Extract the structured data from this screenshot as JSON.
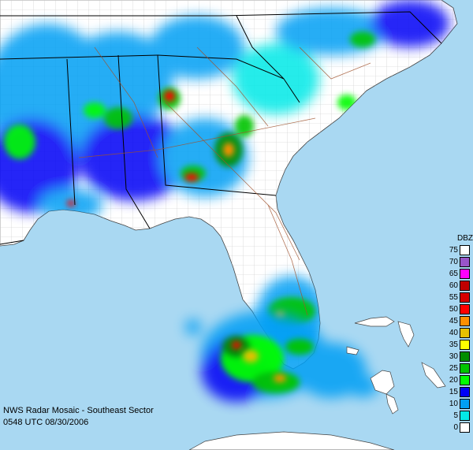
{
  "map": {
    "caption_line1": "NWS Radar Mosaic - Southeast Sector",
    "caption_line2": "0548 UTC 08/30/2006",
    "colors": {
      "water": "#a9d8f2",
      "land": "#ffffff",
      "state_border": "#000000",
      "county_border": "#b0b0b0",
      "road": "#a0522d"
    }
  },
  "legend": {
    "title": "DBZ",
    "levels": [
      {
        "value": "75",
        "color": "#ffffff"
      },
      {
        "value": "70",
        "color": "#9955c9"
      },
      {
        "value": "65",
        "color": "#ff00ff"
      },
      {
        "value": "60",
        "color": "#c00000"
      },
      {
        "value": "55",
        "color": "#d60000"
      },
      {
        "value": "50",
        "color": "#ff0000"
      },
      {
        "value": "45",
        "color": "#ff9000"
      },
      {
        "value": "40",
        "color": "#e7c000"
      },
      {
        "value": "35",
        "color": "#ffff00"
      },
      {
        "value": "30",
        "color": "#008e00"
      },
      {
        "value": "25",
        "color": "#01c501"
      },
      {
        "value": "20",
        "color": "#02fd02"
      },
      {
        "value": "15",
        "color": "#0000f6"
      },
      {
        "value": "10",
        "color": "#019ff4"
      },
      {
        "value": "5",
        "color": "#04e9e7"
      },
      {
        "value": "0",
        "color": "#ffffff"
      }
    ]
  }
}
